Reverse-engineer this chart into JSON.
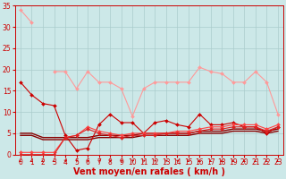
{
  "x": [
    0,
    1,
    2,
    3,
    4,
    5,
    6,
    7,
    8,
    9,
    10,
    11,
    12,
    13,
    14,
    15,
    16,
    17,
    18,
    19,
    20,
    21,
    22,
    23
  ],
  "series": [
    {
      "y": [
        34,
        31,
        null,
        null,
        null,
        null,
        null,
        null,
        null,
        null,
        null,
        null,
        null,
        null,
        null,
        null,
        null,
        null,
        null,
        null,
        null,
        null,
        null,
        null
      ],
      "color": "#ff9999",
      "linewidth": 0.8,
      "marker": "D",
      "markersize": 2,
      "zorder": 2
    },
    {
      "y": [
        null,
        null,
        null,
        19.5,
        19.5,
        15.5,
        19.5,
        17,
        17,
        15.5,
        9,
        15.5,
        17,
        17,
        17,
        17,
        20.5,
        19.5,
        19,
        17,
        17,
        19.5,
        17,
        9.5
      ],
      "color": "#ff9999",
      "linewidth": 0.8,
      "marker": "D",
      "markersize": 2,
      "zorder": 2
    },
    {
      "y": [
        17,
        14,
        12,
        11.5,
        4.5,
        1,
        1.5,
        7,
        9.5,
        7.5,
        7.5,
        5,
        7.5,
        8,
        7,
        6.5,
        9.5,
        7,
        7,
        7.5,
        6.5,
        6.5,
        5,
        6.5
      ],
      "color": "#cc0000",
      "linewidth": 0.8,
      "marker": "D",
      "markersize": 2,
      "zorder": 3
    },
    {
      "y": [
        0.5,
        0.5,
        0.5,
        0.5,
        4,
        4.5,
        6.5,
        5.5,
        5,
        4.5,
        5,
        5,
        5,
        5,
        5.5,
        5.5,
        6,
        6.5,
        6.5,
        7,
        7,
        7,
        6,
        7
      ],
      "color": "#ff4444",
      "linewidth": 0.8,
      "marker": "D",
      "markersize": 2,
      "zorder": 3
    },
    {
      "y": [
        0,
        0,
        0,
        0,
        4,
        4.5,
        6,
        5,
        4.5,
        4,
        4.5,
        4.5,
        4.5,
        5,
        5,
        5,
        5.5,
        6,
        6,
        6.5,
        6.5,
        6.5,
        5.5,
        6.5
      ],
      "color": "#dd2222",
      "linewidth": 0.8,
      "marker": "D",
      "markersize": 2,
      "zorder": 3
    },
    {
      "y": [
        5,
        5,
        4,
        4,
        4,
        4,
        4,
        4.5,
        4.5,
        4.5,
        4.5,
        5,
        5,
        5,
        5,
        5,
        5.5,
        5.5,
        5.5,
        6,
        6,
        6,
        5.5,
        6
      ],
      "color": "#880000",
      "linewidth": 1.0,
      "marker": null,
      "markersize": 0,
      "zorder": 2
    },
    {
      "y": [
        4.5,
        4.5,
        3.5,
        3.5,
        3.5,
        3.5,
        3.5,
        4,
        4,
        4,
        4,
        4.5,
        4.5,
        4.5,
        4.5,
        4.5,
        5,
        5,
        5,
        5.5,
        5.5,
        5.5,
        5,
        5.5
      ],
      "color": "#880000",
      "linewidth": 1.0,
      "marker": null,
      "markersize": 0,
      "zorder": 2
    }
  ],
  "xlabel": "Vent moyen/en rafales ( km/h )",
  "ylabel": "",
  "xlim": [
    -0.5,
    23.5
  ],
  "ylim": [
    0,
    35
  ],
  "yticks": [
    0,
    5,
    10,
    15,
    20,
    25,
    30,
    35
  ],
  "xticks": [
    0,
    1,
    2,
    3,
    4,
    5,
    6,
    7,
    8,
    9,
    10,
    11,
    12,
    13,
    14,
    15,
    16,
    17,
    18,
    19,
    20,
    21,
    22,
    23
  ],
  "bg_color": "#cce8e8",
  "grid_color": "#aacccc",
  "xlabel_fontsize": 7,
  "tick_fontsize": 5.5,
  "arrow_angles": [
    225,
    225,
    225,
    225,
    45,
    45,
    45,
    45,
    45,
    45,
    45,
    45,
    45,
    45,
    45,
    225,
    225,
    225,
    225,
    225,
    225,
    225,
    225,
    225
  ]
}
